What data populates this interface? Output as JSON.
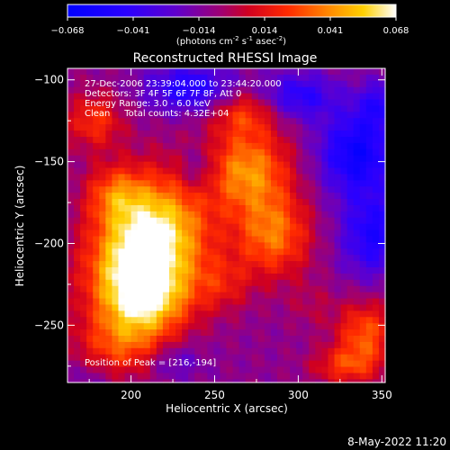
{
  "chart_data": {
    "type": "heatmap",
    "title": "Reconstructed RHESSI Image",
    "xlabel": "Heliocentric X (arcsec)",
    "ylabel": "Heliocentric Y (arcsec)",
    "xlim": [
      162,
      352
    ],
    "ylim": [
      -285,
      -93
    ],
    "x_ticks": [
      200,
      250,
      300,
      350
    ],
    "y_ticks": [
      -100,
      -150,
      -200,
      -250
    ],
    "colorbar": {
      "range": [
        -0.068,
        0.068
      ],
      "ticks": [
        "-0.068",
        "-0.041",
        "-0.014",
        "0.014",
        "0.041",
        "0.068"
      ],
      "label": "(photons cm",
      "label_exp1": "-2",
      "label_mid1": " s",
      "label_exp2": "-1",
      "label_mid2": " asec",
      "label_exp3": "-2",
      "label_end": ")"
    },
    "annotations": [
      "27-Dec-2006 23:39:04.000 to 23:44:20.000",
      "Detectors: 3F 4F 5F 6F 7F 8F, Att 0",
      "Energy Range: 3.0 - 6.0 keV",
      "Clean     Total counts: 4.32E+04"
    ],
    "peak_label": "Position of Peak = [216,-194]",
    "peak": [
      216,
      -194
    ],
    "sources": [
      {
        "x": 216,
        "y": -194,
        "amp": 0.068,
        "sx": 22,
        "sy": 26
      },
      {
        "x": 198,
        "y": -218,
        "amp": 0.045,
        "sx": 20,
        "sy": 22
      },
      {
        "x": 210,
        "y": -235,
        "amp": 0.04,
        "sx": 18,
        "sy": 14
      },
      {
        "x": 190,
        "y": -170,
        "amp": 0.03,
        "sx": 12,
        "sy": 12
      },
      {
        "x": 270,
        "y": -155,
        "amp": 0.05,
        "sx": 18,
        "sy": 18
      },
      {
        "x": 285,
        "y": -195,
        "amp": 0.045,
        "sx": 16,
        "sy": 18
      },
      {
        "x": 268,
        "y": -120,
        "amp": 0.03,
        "sx": 14,
        "sy": 10
      },
      {
        "x": 178,
        "y": -125,
        "amp": 0.032,
        "sx": 12,
        "sy": 12
      },
      {
        "x": 195,
        "y": -262,
        "amp": 0.035,
        "sx": 20,
        "sy": 14
      },
      {
        "x": 255,
        "y": -225,
        "amp": 0.02,
        "sx": 12,
        "sy": 12
      },
      {
        "x": 340,
        "y": -255,
        "amp": 0.04,
        "sx": 12,
        "sy": 14
      },
      {
        "x": 328,
        "y": -275,
        "amp": 0.03,
        "sx": 14,
        "sy": 8
      },
      {
        "x": 308,
        "y": -238,
        "amp": 0.01,
        "sx": 10,
        "sy": 10
      },
      {
        "x": 345,
        "y": -195,
        "amp": -0.04,
        "sx": 14,
        "sy": 18
      },
      {
        "x": 335,
        "y": -145,
        "amp": -0.05,
        "sx": 16,
        "sy": 18
      },
      {
        "x": 300,
        "y": -110,
        "amp": -0.035,
        "sx": 16,
        "sy": 10
      },
      {
        "x": 235,
        "y": -105,
        "amp": -0.04,
        "sx": 18,
        "sy": 10
      },
      {
        "x": 240,
        "y": -155,
        "amp": -0.02,
        "sx": 8,
        "sy": 10
      },
      {
        "x": 350,
        "y": -115,
        "amp": -0.03,
        "sx": 10,
        "sy": 10
      },
      {
        "x": 225,
        "y": -272,
        "amp": -0.02,
        "sx": 12,
        "sy": 8
      },
      {
        "x": 175,
        "y": -282,
        "amp": -0.01,
        "sx": 10,
        "sy": 8
      }
    ],
    "background": -0.01
  },
  "footer": {
    "date": "8-May-2022 11:20"
  }
}
